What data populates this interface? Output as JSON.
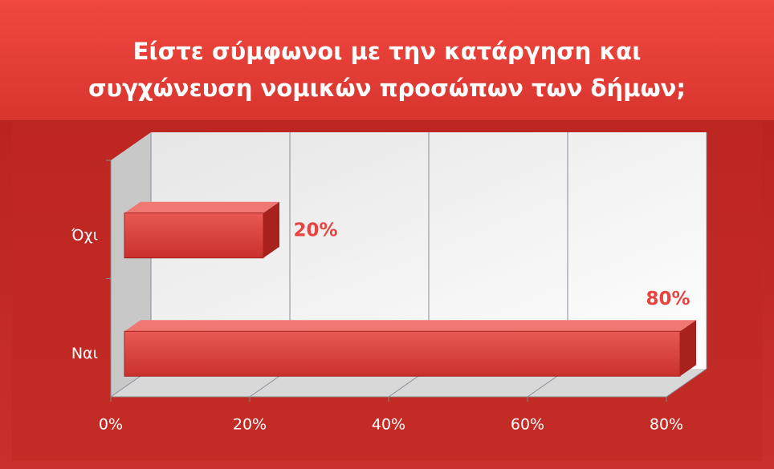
{
  "chart_data": {
    "type": "bar3d_horizontal",
    "title": [
      "Είστε σύμφωνοι με την κατάργηση και",
      "συγχώνευση νομικών προσώπων των δήμων;"
    ],
    "categories": [
      "Όχι",
      "Ναι"
    ],
    "values": [
      20,
      80
    ],
    "value_labels": [
      "20%",
      "80%"
    ],
    "color": "#d8403c",
    "xlim": [
      0,
      80
    ],
    "xticks": [
      {
        "value": 0,
        "label": "0%"
      },
      {
        "value": 20,
        "label": "20%"
      },
      {
        "value": 40,
        "label": "40%"
      },
      {
        "value": 60,
        "label": "60%"
      },
      {
        "value": 80,
        "label": "80%"
      }
    ],
    "grid": true
  }
}
